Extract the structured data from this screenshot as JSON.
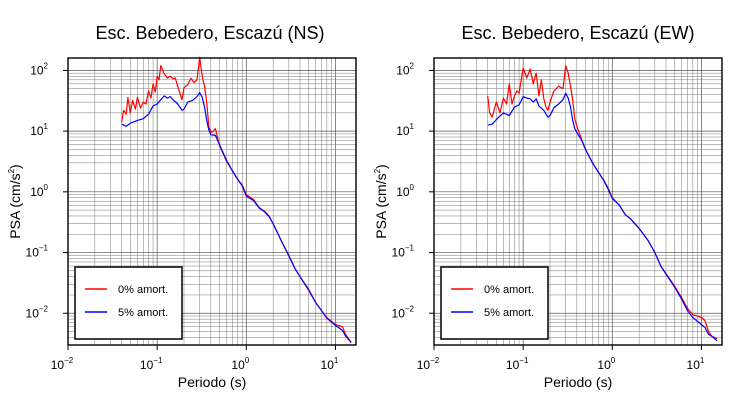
{
  "chart_data": [
    {
      "type": "line",
      "title": "Esc. Bebedero, Escazú (NS)",
      "xlabel": "Periodo (s)",
      "ylabel": "PSA (cm/s",
      "ylabel_sup": "2",
      "ylabel_end": ")",
      "x_scale": "log",
      "y_scale": "log",
      "xlim": [
        0.01,
        17
      ],
      "ylim": [
        0.003,
        160
      ],
      "grid": true,
      "legend_position": "bottom-left",
      "x_ticks": [
        {
          "base": "10",
          "exp": "−2",
          "value": 0.01
        },
        {
          "base": "10",
          "exp": "−1",
          "value": 0.1
        },
        {
          "base": "10",
          "exp": "0",
          "value": 1
        },
        {
          "base": "10",
          "exp": "1",
          "value": 10
        }
      ],
      "y_ticks": [
        {
          "base": "10",
          "exp": "−2",
          "value": 0.01
        },
        {
          "base": "10",
          "exp": "−1",
          "value": 0.1
        },
        {
          "base": "10",
          "exp": "0",
          "value": 1
        },
        {
          "base": "10",
          "exp": "1",
          "value": 10
        },
        {
          "base": "10",
          "exp": "2",
          "value": 100
        }
      ],
      "series": [
        {
          "name": "0% amort.",
          "color": "#ff0000",
          "points": [
            [
              0.04,
              14
            ],
            [
              0.042,
              22
            ],
            [
              0.045,
              19
            ],
            [
              0.047,
              36
            ],
            [
              0.05,
              20
            ],
            [
              0.053,
              32
            ],
            [
              0.057,
              23
            ],
            [
              0.06,
              36
            ],
            [
              0.065,
              24
            ],
            [
              0.07,
              30
            ],
            [
              0.075,
              28
            ],
            [
              0.08,
              46
            ],
            [
              0.085,
              35
            ],
            [
              0.09,
              60
            ],
            [
              0.095,
              44
            ],
            [
              0.1,
              80
            ],
            [
              0.105,
              70
            ],
            [
              0.11,
              120
            ],
            [
              0.12,
              88
            ],
            [
              0.13,
              75
            ],
            [
              0.14,
              80
            ],
            [
              0.15,
              73
            ],
            [
              0.16,
              75
            ],
            [
              0.17,
              55
            ],
            [
              0.18,
              42
            ],
            [
              0.19,
              33
            ],
            [
              0.2,
              52
            ],
            [
              0.22,
              58
            ],
            [
              0.24,
              74
            ],
            [
              0.26,
              63
            ],
            [
              0.28,
              70
            ],
            [
              0.3,
              165
            ],
            [
              0.32,
              80
            ],
            [
              0.34,
              55
            ],
            [
              0.36,
              30
            ],
            [
              0.38,
              12
            ],
            [
              0.4,
              9.5
            ],
            [
              0.42,
              9.8
            ],
            [
              0.45,
              11
            ],
            [
              0.5,
              5.8
            ],
            [
              0.6,
              3.2
            ],
            [
              0.7,
              2.2
            ],
            [
              0.8,
              1.6
            ],
            [
              0.9,
              1.3
            ],
            [
              1,
              0.9
            ],
            [
              1.2,
              0.75
            ],
            [
              1.4,
              0.55
            ],
            [
              1.6,
              0.48
            ],
            [
              1.8,
              0.4
            ],
            [
              2,
              0.3
            ],
            [
              2.5,
              0.15
            ],
            [
              3,
              0.09
            ],
            [
              3.5,
              0.055
            ],
            [
              4,
              0.04
            ],
            [
              5,
              0.025
            ],
            [
              6,
              0.015
            ],
            [
              7,
              0.011
            ],
            [
              8,
              0.0085
            ],
            [
              10,
              0.0065
            ],
            [
              12,
              0.006
            ],
            [
              13,
              0.0045
            ],
            [
              15,
              0.0033
            ]
          ]
        },
        {
          "name": "5% amort.",
          "color": "#0000ff",
          "points": [
            [
              0.04,
              13
            ],
            [
              0.045,
              12
            ],
            [
              0.05,
              13.5
            ],
            [
              0.06,
              15
            ],
            [
              0.07,
              16
            ],
            [
              0.08,
              19
            ],
            [
              0.09,
              26
            ],
            [
              0.1,
              28
            ],
            [
              0.11,
              33
            ],
            [
              0.12,
              38
            ],
            [
              0.13,
              35
            ],
            [
              0.14,
              37
            ],
            [
              0.15,
              33
            ],
            [
              0.17,
              28
            ],
            [
              0.19,
              22
            ],
            [
              0.2,
              23
            ],
            [
              0.22,
              30
            ],
            [
              0.25,
              32
            ],
            [
              0.28,
              37
            ],
            [
              0.3,
              43
            ],
            [
              0.32,
              36
            ],
            [
              0.34,
              25
            ],
            [
              0.36,
              15
            ],
            [
              0.38,
              10.5
            ],
            [
              0.4,
              8.7
            ],
            [
              0.45,
              8.5
            ],
            [
              0.5,
              6
            ],
            [
              0.6,
              3.3
            ],
            [
              0.7,
              2.2
            ],
            [
              0.8,
              1.6
            ],
            [
              0.9,
              1.25
            ],
            [
              1,
              0.85
            ],
            [
              1.2,
              0.72
            ],
            [
              1.4,
              0.54
            ],
            [
              1.6,
              0.47
            ],
            [
              1.8,
              0.39
            ],
            [
              2,
              0.3
            ],
            [
              2.5,
              0.15
            ],
            [
              3,
              0.088
            ],
            [
              3.5,
              0.055
            ],
            [
              4,
              0.04
            ],
            [
              5,
              0.024
            ],
            [
              6,
              0.015
            ],
            [
              7,
              0.011
            ],
            [
              8,
              0.0083
            ],
            [
              10,
              0.0063
            ],
            [
              12,
              0.0052
            ],
            [
              13,
              0.0042
            ],
            [
              15,
              0.0033
            ]
          ]
        }
      ]
    },
    {
      "type": "line",
      "title": "Esc. Bebedero, Escazú (EW)",
      "xlabel": "Periodo (s)",
      "ylabel": "PSA (cm/s",
      "ylabel_sup": "2",
      "ylabel_end": ")",
      "x_scale": "log",
      "y_scale": "log",
      "xlim": [
        0.01,
        17
      ],
      "ylim": [
        0.003,
        160
      ],
      "grid": true,
      "legend_position": "bottom-left",
      "x_ticks": [
        {
          "base": "10",
          "exp": "−2",
          "value": 0.01
        },
        {
          "base": "10",
          "exp": "−1",
          "value": 0.1
        },
        {
          "base": "10",
          "exp": "0",
          "value": 1
        },
        {
          "base": "10",
          "exp": "1",
          "value": 10
        }
      ],
      "y_ticks": [
        {
          "base": "10",
          "exp": "−2",
          "value": 0.01
        },
        {
          "base": "10",
          "exp": "−1",
          "value": 0.1
        },
        {
          "base": "10",
          "exp": "0",
          "value": 1
        },
        {
          "base": "10",
          "exp": "1",
          "value": 10
        },
        {
          "base": "10",
          "exp": "2",
          "value": 100
        }
      ],
      "series": [
        {
          "name": "0% amort.",
          "color": "#ff0000",
          "points": [
            [
              0.04,
              38
            ],
            [
              0.042,
              20
            ],
            [
              0.045,
              17
            ],
            [
              0.05,
              30
            ],
            [
              0.055,
              20
            ],
            [
              0.06,
              35
            ],
            [
              0.065,
              28
            ],
            [
              0.07,
              60
            ],
            [
              0.075,
              28
            ],
            [
              0.08,
              38
            ],
            [
              0.085,
              46
            ],
            [
              0.09,
              42
            ],
            [
              0.095,
              70
            ],
            [
              0.1,
              110
            ],
            [
              0.11,
              75
            ],
            [
              0.12,
              105
            ],
            [
              0.13,
              60
            ],
            [
              0.14,
              90
            ],
            [
              0.15,
              38
            ],
            [
              0.16,
              70
            ],
            [
              0.17,
              35
            ],
            [
              0.18,
              25
            ],
            [
              0.19,
              22
            ],
            [
              0.2,
              30
            ],
            [
              0.22,
              45
            ],
            [
              0.25,
              55
            ],
            [
              0.28,
              50
            ],
            [
              0.3,
              120
            ],
            [
              0.32,
              90
            ],
            [
              0.34,
              55
            ],
            [
              0.36,
              32
            ],
            [
              0.38,
              16
            ],
            [
              0.4,
              12
            ],
            [
              0.45,
              7.5
            ],
            [
              0.5,
              5
            ],
            [
              0.6,
              3
            ],
            [
              0.7,
              2.1
            ],
            [
              0.8,
              1.55
            ],
            [
              0.9,
              1.15
            ],
            [
              1,
              0.8
            ],
            [
              1.2,
              0.6
            ],
            [
              1.4,
              0.42
            ],
            [
              1.6,
              0.36
            ],
            [
              2,
              0.25
            ],
            [
              2.5,
              0.16
            ],
            [
              3,
              0.1
            ],
            [
              3.5,
              0.06
            ],
            [
              4,
              0.045
            ],
            [
              5,
              0.028
            ],
            [
              6,
              0.018
            ],
            [
              7,
              0.012
            ],
            [
              8,
              0.0095
            ],
            [
              10,
              0.0085
            ],
            [
              11,
              0.0075
            ],
            [
              12,
              0.005
            ],
            [
              13,
              0.0042
            ],
            [
              15,
              0.0038
            ]
          ]
        },
        {
          "name": "5% amort.",
          "color": "#0000ff",
          "points": [
            [
              0.04,
              12.5
            ],
            [
              0.045,
              13
            ],
            [
              0.05,
              15.5
            ],
            [
              0.06,
              20
            ],
            [
              0.07,
              18
            ],
            [
              0.08,
              25
            ],
            [
              0.09,
              27
            ],
            [
              0.1,
              37
            ],
            [
              0.11,
              35
            ],
            [
              0.12,
              34
            ],
            [
              0.13,
              30
            ],
            [
              0.14,
              34
            ],
            [
              0.15,
              26
            ],
            [
              0.17,
              22
            ],
            [
              0.19,
              17
            ],
            [
              0.2,
              18
            ],
            [
              0.22,
              24
            ],
            [
              0.25,
              28
            ],
            [
              0.28,
              33
            ],
            [
              0.3,
              42
            ],
            [
              0.32,
              35
            ],
            [
              0.34,
              25
            ],
            [
              0.36,
              15
            ],
            [
              0.38,
              11
            ],
            [
              0.4,
              9.5
            ],
            [
              0.45,
              7.2
            ],
            [
              0.5,
              5
            ],
            [
              0.6,
              3
            ],
            [
              0.7,
              2.1
            ],
            [
              0.8,
              1.55
            ],
            [
              0.9,
              1.1
            ],
            [
              1,
              0.78
            ],
            [
              1.2,
              0.6
            ],
            [
              1.4,
              0.42
            ],
            [
              1.6,
              0.36
            ],
            [
              2,
              0.25
            ],
            [
              2.5,
              0.16
            ],
            [
              3,
              0.1
            ],
            [
              3.5,
              0.06
            ],
            [
              4,
              0.044
            ],
            [
              5,
              0.027
            ],
            [
              6,
              0.017
            ],
            [
              7,
              0.011
            ],
            [
              8,
              0.0085
            ],
            [
              10,
              0.0065
            ],
            [
              11,
              0.0058
            ],
            [
              12,
              0.0045
            ],
            [
              13,
              0.0042
            ],
            [
              15,
              0.0035
            ]
          ]
        }
      ]
    }
  ]
}
